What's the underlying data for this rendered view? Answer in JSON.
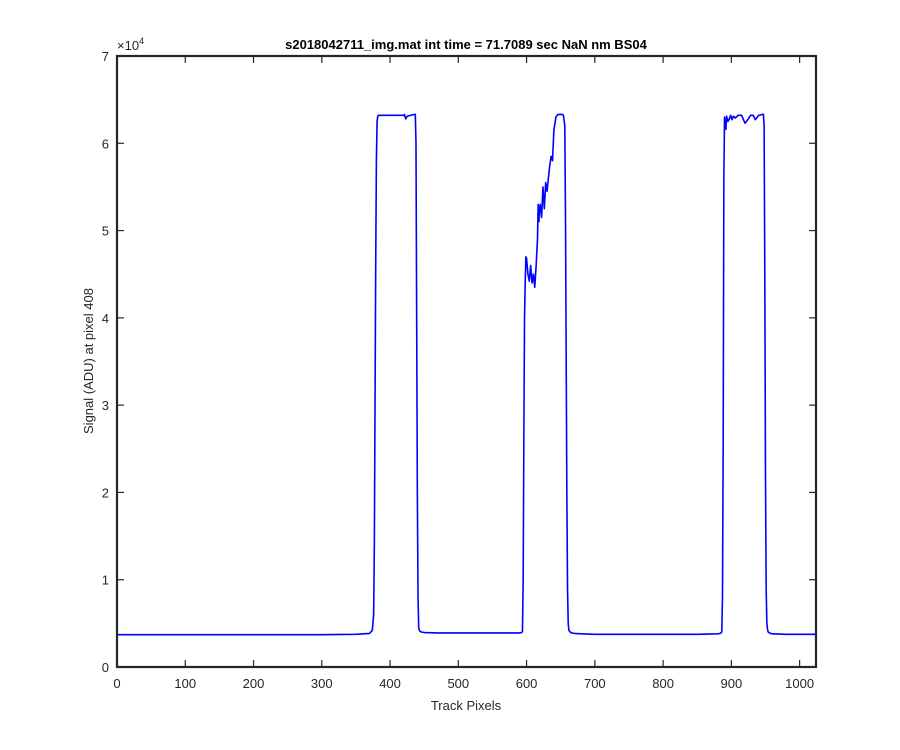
{
  "chart_data": {
    "type": "line",
    "title": "s2018042711_img.mat int time = 71.7089 sec  NaN nm BS04",
    "xlabel": "Track Pixels",
    "ylabel": "Signal (ADU) at pixel 408",
    "xlim": [
      0,
      1024
    ],
    "ylim": [
      0,
      70000
    ],
    "xticks": [
      0,
      100,
      200,
      300,
      400,
      500,
      600,
      700,
      800,
      900,
      1000
    ],
    "yticks": [
      0,
      10000,
      20000,
      30000,
      40000,
      50000,
      60000,
      70000
    ],
    "ytick_labels": [
      "0",
      "1",
      "2",
      "3",
      "4",
      "5",
      "6",
      "7"
    ],
    "y_exponent": {
      "base": "×10",
      "power": "4"
    },
    "grid": false,
    "line_color": "#0000ff",
    "series": [
      {
        "x": [
          0,
          50,
          100,
          150,
          200,
          250,
          300,
          350,
          370,
          374,
          376,
          377,
          378,
          379,
          380,
          381,
          382,
          383,
          384,
          385,
          386,
          388,
          390,
          400,
          410,
          420,
          421,
          423,
          425,
          430,
          435,
          437,
          438,
          439,
          440,
          441,
          442,
          443,
          444,
          446,
          450,
          470,
          500,
          530,
          560,
          590,
          593,
          594,
          595,
          596,
          597,
          598,
          599,
          600,
          602,
          604,
          606,
          608,
          610,
          612,
          614,
          616,
          617,
          618,
          619,
          620,
          622,
          624,
          626,
          628,
          630,
          632,
          634,
          636,
          638,
          640,
          643,
          646,
          650,
          652,
          654,
          656,
          657,
          658,
          659,
          660,
          661,
          662,
          664,
          666,
          670,
          680,
          700,
          750,
          800,
          850,
          880,
          884,
          886,
          887,
          888,
          889,
          890,
          891,
          892,
          893,
          895,
          897,
          899,
          901,
          903,
          906,
          910,
          915,
          920,
          925,
          928,
          932,
          935,
          940,
          945,
          947,
          948,
          949,
          950,
          951,
          952,
          953,
          954,
          956,
          960,
          980,
          1000,
          1024
        ],
        "y": [
          3700,
          3700,
          3700,
          3700,
          3700,
          3700,
          3700,
          3750,
          3850,
          4200,
          6000,
          14000,
          30000,
          46000,
          58000,
          62500,
          63100,
          63200,
          63200,
          63200,
          63200,
          63200,
          63200,
          63200,
          63200,
          63200,
          63300,
          62800,
          63100,
          63200,
          63300,
          63300,
          60000,
          40000,
          20000,
          8000,
          4500,
          4200,
          4100,
          4000,
          3950,
          3900,
          3900,
          3900,
          3900,
          3900,
          3950,
          4100,
          10000,
          26000,
          40000,
          44000,
          47000,
          46800,
          45000,
          44200,
          46000,
          44000,
          45000,
          43500,
          46000,
          49000,
          53000,
          51000,
          52500,
          53000,
          51500,
          55000,
          52500,
          55500,
          54500,
          56000,
          57500,
          58500,
          58000,
          61500,
          63000,
          63300,
          63300,
          63300,
          63200,
          62000,
          52000,
          36000,
          20000,
          9000,
          5000,
          4200,
          4000,
          3900,
          3850,
          3800,
          3750,
          3750,
          3750,
          3750,
          3800,
          3850,
          4000,
          8000,
          25000,
          56000,
          63000,
          62200,
          61600,
          63100,
          62500,
          62800,
          63200,
          62700,
          63100,
          62900,
          63200,
          63200,
          62300,
          62800,
          63200,
          63200,
          62700,
          63200,
          63300,
          63300,
          62000,
          45000,
          22000,
          9000,
          5000,
          4300,
          4000,
          3900,
          3800,
          3750,
          3750,
          3750
        ]
      }
    ]
  }
}
